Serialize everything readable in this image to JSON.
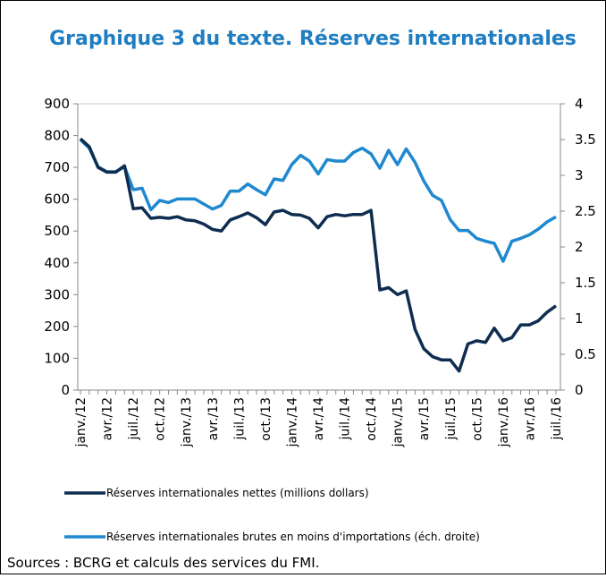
{
  "chart_data": {
    "type": "line",
    "title": "Graphique 3 du texte. Réserves internationales",
    "source": "Sources : BCRG et calculs des services du FMI.",
    "categories": [
      "janv./12",
      null,
      null,
      "avr./12",
      null,
      null,
      "juil./12",
      null,
      null,
      "oct./12",
      null,
      null,
      "janv./13",
      null,
      null,
      "avr./13",
      null,
      null,
      "juil./13",
      null,
      null,
      "oct./13",
      null,
      null,
      "janv./14",
      null,
      null,
      "avr./14",
      null,
      null,
      "juil./14",
      null,
      null,
      "oct./14",
      null,
      null,
      "janv./15",
      null,
      null,
      "avr./15",
      null,
      null,
      "juil./15",
      null,
      null,
      "oct./15",
      null,
      null,
      "janv./16",
      null,
      null,
      "avr./16",
      null,
      null,
      "juil./16"
    ],
    "series": [
      {
        "name": "Réserves internationales nettes (millions dollars)",
        "color": "#0e2d50",
        "values": [
          790,
          765,
          700,
          685,
          685,
          705,
          570,
          573,
          540,
          543,
          540,
          545,
          535,
          532,
          522,
          505,
          500,
          535,
          545,
          557,
          542,
          520,
          560,
          565,
          552,
          550,
          540,
          510,
          545,
          552,
          548,
          552,
          552,
          565,
          315,
          322,
          300,
          312,
          190,
          130,
          105,
          95,
          95,
          60,
          145,
          155,
          150,
          195,
          155,
          165,
          205,
          205,
          218,
          245,
          265
        ]
      },
      {
        "name": "Réserves internationales brutes en moins d'importations (éch. droite)",
        "color": "#1f88cf",
        "axis": "y2",
        "values": [
          3.5,
          3.38,
          3.12,
          3.05,
          3.05,
          3.12,
          2.8,
          2.82,
          2.52,
          2.65,
          2.62,
          2.67,
          2.67,
          2.67,
          2.6,
          2.53,
          2.58,
          2.78,
          2.78,
          2.88,
          2.8,
          2.73,
          2.95,
          2.93,
          3.15,
          3.28,
          3.2,
          3.02,
          3.22,
          3.2,
          3.2,
          3.32,
          3.38,
          3.3,
          3.1,
          3.35,
          3.15,
          3.37,
          3.18,
          2.92,
          2.72,
          2.65,
          2.38,
          2.23,
          2.23,
          2.12,
          2.08,
          2.05,
          1.8,
          2.08,
          2.12,
          2.17,
          2.25,
          2.35,
          2.42
        ]
      }
    ],
    "ylim": [
      0,
      900
    ],
    "yticks": [
      0,
      100,
      200,
      300,
      400,
      500,
      600,
      700,
      800,
      900
    ],
    "y2lim": [
      0,
      4
    ],
    "y2ticks": [
      0,
      0.5,
      1,
      1.5,
      2,
      2.5,
      3,
      3.5,
      4
    ],
    "grid": false
  }
}
